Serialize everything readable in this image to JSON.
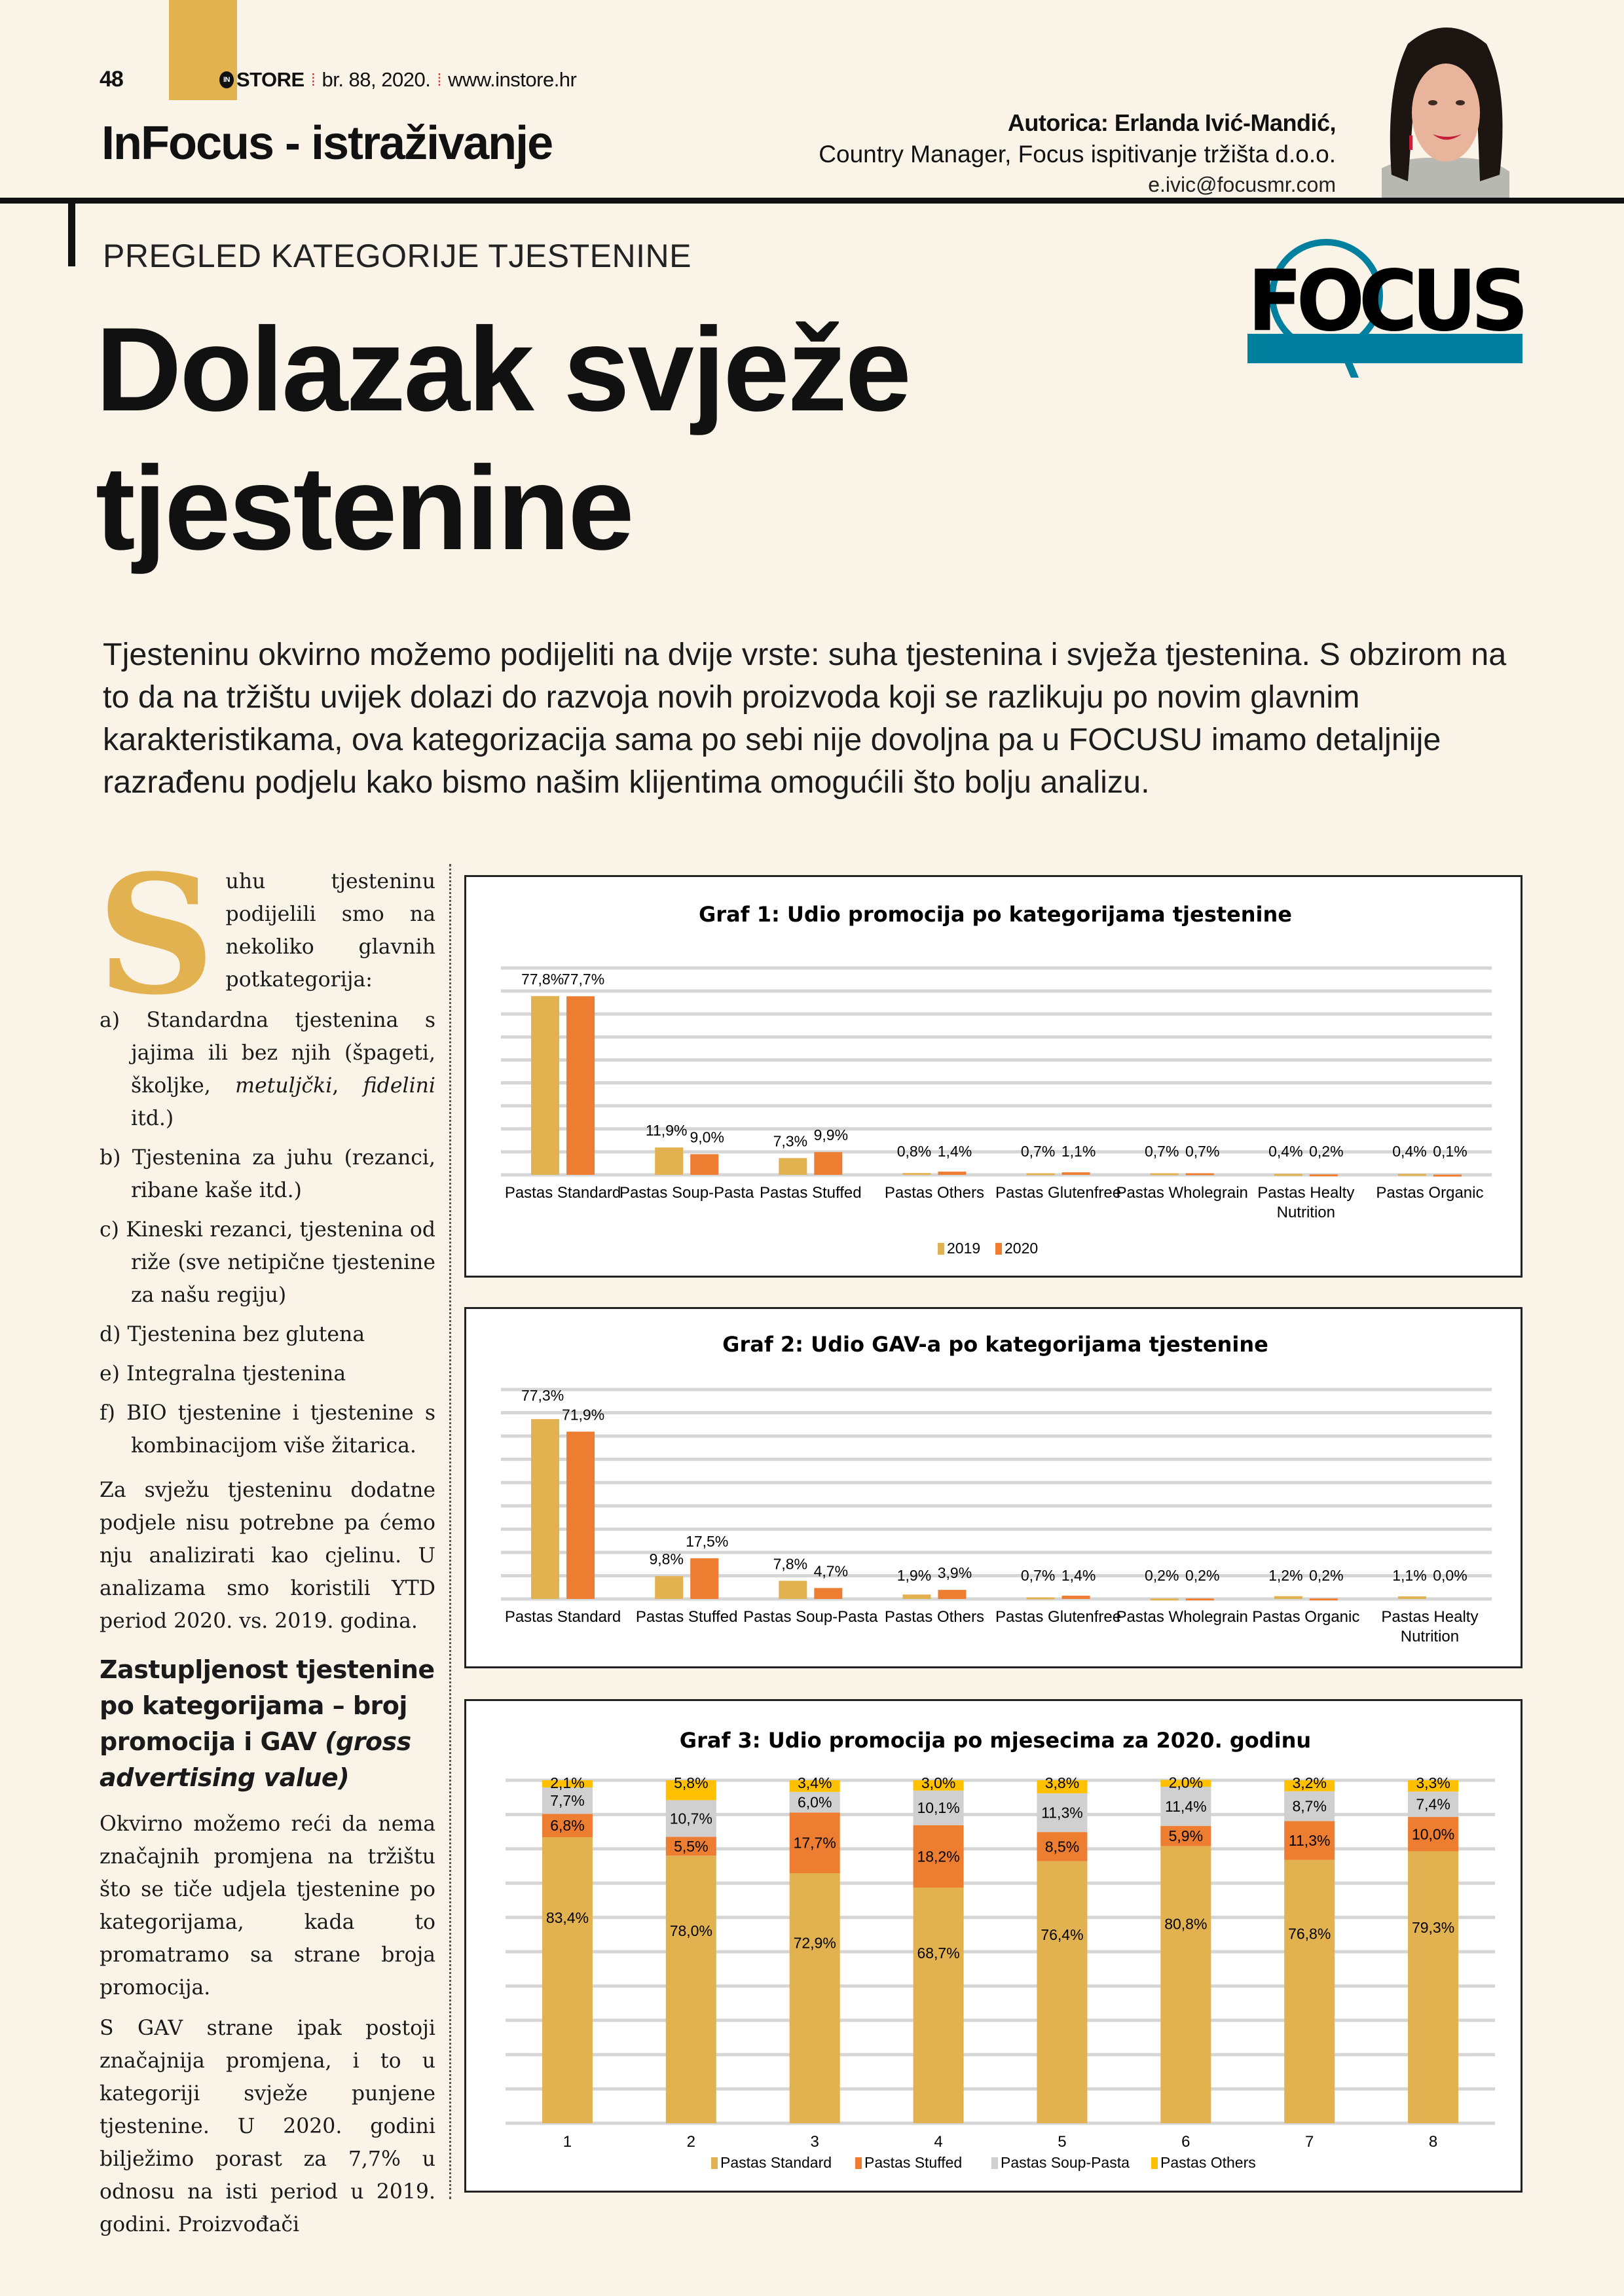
{
  "header": {
    "page_number": "48",
    "magazine_logo": "STORE",
    "magazine_logo_prefix": "IN",
    "issue": "br. 88, 2020.",
    "website": "www.instore.hr",
    "section": "InFocus - istraživanje"
  },
  "author": {
    "name_line": "Autorica: Erlanda Ivić-Mandić,",
    "role": "Country Manager, Focus ispitivanje tržišta d.o.o.",
    "email": "e.ivic@focusmr.com"
  },
  "brand": {
    "logo_text": "FOCUS",
    "accent": "#00809e",
    "gold": "#e3b250"
  },
  "article": {
    "kicker": "PREGLED KATEGORIJE TJESTENINE",
    "title_line1": "Dolazak svježe",
    "title_line2": "tjestenine",
    "intro": "Tjesteninu okvirno možemo podijeliti na dvije vrste: suha tjestenina i svježa tjestenina. S obzirom na to da na tržištu uvijek dolazi do razvoja novih proizvoda koji se razlikuju po novim glavnim karakteristikama, ova kategorizacija sama po sebi nije dovoljna pa u FOCUSU imamo detaljnije razrađenu podjelu kako bismo našim klijentima omogućili što bolju analizu.",
    "drop_cap": "S",
    "p1": "uhu tjesteninu podijelili smo na nekoliko glavnih potkategorija:",
    "list": [
      {
        "marker": "a)",
        "text_before": "Standardna tjestenina s jajima ili bez njih (špageti, školjke, ",
        "italic1": "metuljčki",
        "mid": ", ",
        "italic2": "fidelini",
        "text_after": " itd.)"
      },
      {
        "marker": "b)",
        "text": "Tjestenina za juhu (rezanci, ribane kaše itd.)"
      },
      {
        "marker": "c)",
        "text": "Kineski rezanci, tjestenina od riže (sve netipične tjestenine za našu regiju)"
      },
      {
        "marker": "d)",
        "text": "Tjestenina bez glutena"
      },
      {
        "marker": "e)",
        "text": "Integralna tjestenina"
      },
      {
        "marker": "f)",
        "text": "BIO tjestenine i tjestenine s kombinacijom više žitarica."
      }
    ],
    "p2": "Za svježu tjesteninu dodatne podjele nisu potrebne pa ćemo nju analizirati kao cjelinu. U analizama smo koristili YTD period 2020. vs. 2019. godina.",
    "subheading": "Zastupljenost tjestenine po kategorijama – broj promocija i GAV ",
    "subheading_italic": "(gross advertising value)",
    "p3": "Okvirno možemo reći da nema značajnih promjena na tržištu što se tiče udjela tjestenine po kategorijama, kada to promatramo sa strane broja promocija.",
    "p4": "S GAV strane ipak postoji značajnija promjena, i to u kategoriji svježe punjene tjestenine. U 2020. godini bilježimo porast za 7,7% u odnosu na isti period u 2019. godini. Proizvođači"
  },
  "chart_data": [
    {
      "type": "bar",
      "title": "Graf 1: Udio promocija po kategorijama tjestenine",
      "categories": [
        "Pastas Standard",
        "Pastas Soup-Pasta",
        "Pastas Stuffed",
        "Pastas Others",
        "Pastas Glutenfree",
        "Pastas Wholegrain",
        "Pastas Healty Nutrition",
        "Pastas Organic"
      ],
      "series": [
        {
          "name": "2019",
          "color": "#e3b250",
          "values": [
            77.8,
            11.9,
            7.3,
            0.8,
            0.7,
            0.7,
            0.4,
            0.4
          ],
          "labels": [
            "77,8%",
            "11,9%",
            "7,3%",
            "0,8%",
            "0,7%",
            "0,7%",
            "0,4%",
            "0,4%"
          ]
        },
        {
          "name": "2020",
          "color": "#ed7d31",
          "values": [
            77.7,
            9.0,
            9.9,
            1.4,
            1.1,
            0.7,
            0.2,
            0.1
          ],
          "labels": [
            "77,7%",
            "9,0%",
            "9,9%",
            "1,4%",
            "1,1%",
            "0,7%",
            "0,2%",
            "0,1%"
          ]
        }
      ],
      "ylim": [
        0,
        90
      ],
      "grid": true,
      "legend": "bottom"
    },
    {
      "type": "bar",
      "title": "Graf 2: Udio GAV-a po kategorijama tjestenine",
      "categories": [
        "Pastas Standard",
        "Pastas Stuffed",
        "Pastas Soup-Pasta",
        "Pastas Others",
        "Pastas Glutenfree",
        "Pastas Wholegrain",
        "Pastas Organic",
        "Pastas Healty Nutrition"
      ],
      "series": [
        {
          "color": "#e3b250",
          "values": [
            77.3,
            9.8,
            7.8,
            1.9,
            0.7,
            0.2,
            1.2,
            1.1
          ],
          "labels": [
            "77,3%",
            "9,8%",
            "7,8%",
            "1,9%",
            "0,7%",
            "0,2%",
            "1,2%",
            "1,1%"
          ]
        },
        {
          "color": "#ed7d31",
          "values": [
            71.9,
            17.5,
            4.7,
            3.9,
            1.4,
            0.2,
            0.2,
            0.0
          ],
          "labels": [
            "71,9%",
            "17,5%",
            "4,7%",
            "3,9%",
            "1,4%",
            "0,2%",
            "0,2%",
            "0,0%"
          ]
        }
      ],
      "ylim": [
        0,
        90
      ],
      "grid": true,
      "legend": "none"
    },
    {
      "type": "bar",
      "stacked": "100%",
      "title": "Graf 3: Udio promocija po mjesecima za 2020. godinu",
      "categories": [
        "1",
        "2",
        "3",
        "4",
        "5",
        "6",
        "7",
        "8"
      ],
      "series": [
        {
          "name": "Pastas Standard",
          "color": "#e3b250",
          "values": [
            83.4,
            78.0,
            72.9,
            68.7,
            76.4,
            80.8,
            76.8,
            79.3
          ],
          "labels": [
            "83,4%",
            "78,0%",
            "72,9%",
            "68,7%",
            "76,4%",
            "80,8%",
            "76,8%",
            "79,3%"
          ]
        },
        {
          "name": "Pastas Stuffed",
          "color": "#ed7d31",
          "values": [
            6.8,
            5.5,
            17.7,
            18.2,
            8.5,
            5.9,
            11.3,
            10.0
          ],
          "labels": [
            "6,8%",
            "5,5%",
            "17,7%",
            "18,2%",
            "8,5%",
            "5,9%",
            "11,3%",
            "10,0%"
          ]
        },
        {
          "name": "Pastas Soup-Pasta",
          "color": "#d0d0d0",
          "values": [
            7.7,
            10.7,
            6.0,
            10.1,
            11.3,
            11.4,
            8.7,
            7.4
          ],
          "labels": [
            "7,7%",
            "10,7%",
            "6,0%",
            "10,1%",
            "11,3%",
            "11,4%",
            "8,7%",
            "7,4%"
          ]
        },
        {
          "name": "Pastas Others",
          "color": "#ffc000",
          "values": [
            2.1,
            5.8,
            3.4,
            3.0,
            3.8,
            2.0,
            3.2,
            3.3
          ],
          "labels": [
            "2,1%",
            "5,8%",
            "3,4%",
            "3,0%",
            "3,8%",
            "2,0%",
            "3,2%",
            "3,3%"
          ]
        }
      ],
      "ylim": [
        0,
        100
      ],
      "grid": true,
      "legend": "bottom"
    }
  ]
}
